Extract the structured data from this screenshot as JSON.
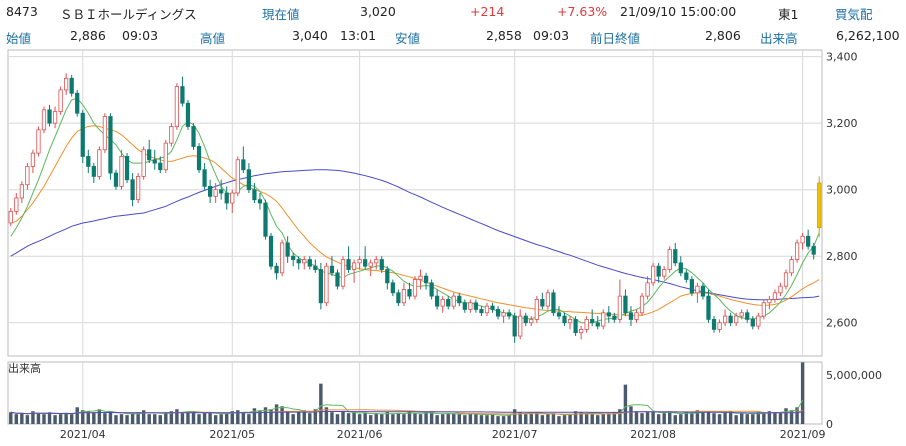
{
  "header": {
    "code": "8473",
    "name": "ＳＢＩホールディングス",
    "price_label": "現在値",
    "price": "3,020",
    "change": "+214",
    "change_pct": "+7.63%",
    "datetime": "21/09/10  15:00:00",
    "market": "東1",
    "signal": "買気配"
  },
  "stats": {
    "open_label": "始値",
    "open": "2,886",
    "open_time": "09:03",
    "high_label": "高値",
    "high": "3,040",
    "high_time": "13:01",
    "low_label": "安値",
    "low": "2,858",
    "low_time": "09:03",
    "prev_label": "前日終値",
    "prev": "2,806",
    "vol_label": "出来高",
    "volume": "6,262,100"
  },
  "volume_panel_label": "出来高",
  "colors": {
    "label": "#1a6fa3",
    "up": "#e03a3a",
    "candle_down": "#0d7a6f",
    "candle_up_body": "#ffffff",
    "candle_up_edge": "#e05050",
    "candle_last": "#f2c200",
    "ma_short": "#5cb85c",
    "ma_mid": "#f0902a",
    "ma_long": "#4a4acc",
    "volume_bar": "#4a5a6c",
    "grid": "#d8d8d8"
  },
  "chart_data": {
    "type": "candlestick",
    "y_ticks": [
      "3,400",
      "3,200",
      "3,000",
      "2,800",
      "2,600"
    ],
    "ylim": [
      2500,
      3420
    ],
    "volume_ticks": [
      "5,000,000",
      "0"
    ],
    "volume_lim": [
      0,
      6300000
    ],
    "x_ticks": [
      "2021/04",
      "2021/05",
      "2021/06",
      "2021/07",
      "2021/08",
      "2021/09"
    ],
    "x_tick_index": [
      13,
      40,
      63,
      91,
      116,
      143
    ],
    "ohlc": [
      [
        2900,
        2945,
        2890,
        2935
      ],
      [
        2935,
        2990,
        2925,
        2975
      ],
      [
        2975,
        3025,
        2960,
        3015
      ],
      [
        3015,
        3080,
        3000,
        3070
      ],
      [
        3070,
        3120,
        3050,
        3110
      ],
      [
        3110,
        3190,
        3100,
        3180
      ],
      [
        3180,
        3250,
        3170,
        3240
      ],
      [
        3240,
        3255,
        3190,
        3200
      ],
      [
        3200,
        3250,
        3185,
        3235
      ],
      [
        3235,
        3310,
        3225,
        3300
      ],
      [
        3300,
        3350,
        3285,
        3335
      ],
      [
        3335,
        3345,
        3280,
        3290
      ],
      [
        3290,
        3300,
        3220,
        3230
      ],
      [
        3230,
        3240,
        3080,
        3100
      ],
      [
        3100,
        3120,
        3050,
        3070
      ],
      [
        3070,
        3080,
        3020,
        3040
      ],
      [
        3040,
        3130,
        3030,
        3120
      ],
      [
        3120,
        3230,
        3110,
        3220
      ],
      [
        3220,
        3230,
        3030,
        3050
      ],
      [
        3050,
        3060,
        3000,
        3010
      ],
      [
        3010,
        3120,
        3000,
        3100
      ],
      [
        3100,
        3110,
        3020,
        3030
      ],
      [
        3030,
        3050,
        2950,
        2970
      ],
      [
        2970,
        3050,
        2960,
        3040
      ],
      [
        3040,
        3130,
        3030,
        3120
      ],
      [
        3120,
        3150,
        3080,
        3090
      ],
      [
        3090,
        3120,
        3060,
        3080
      ],
      [
        3080,
        3100,
        3050,
        3060
      ],
      [
        3060,
        3150,
        3050,
        3140
      ],
      [
        3140,
        3200,
        3130,
        3190
      ],
      [
        3190,
        3320,
        3180,
        3310
      ],
      [
        3310,
        3340,
        3250,
        3260
      ],
      [
        3260,
        3270,
        3180,
        3190
      ],
      [
        3190,
        3200,
        3120,
        3130
      ],
      [
        3130,
        3140,
        3050,
        3060
      ],
      [
        3060,
        3080,
        3000,
        3010
      ],
      [
        3010,
        3030,
        2960,
        2980
      ],
      [
        2980,
        3020,
        2960,
        3000
      ],
      [
        3000,
        3030,
        2970,
        2990
      ],
      [
        2990,
        3010,
        2940,
        2960
      ],
      [
        2960,
        3000,
        2930,
        2990
      ],
      [
        2990,
        3100,
        2980,
        3090
      ],
      [
        3090,
        3130,
        3050,
        3060
      ],
      [
        3060,
        3080,
        2990,
        3000
      ],
      [
        3000,
        3020,
        2960,
        2970
      ],
      [
        2970,
        2990,
        2940,
        2960
      ],
      [
        2960,
        2970,
        2850,
        2860
      ],
      [
        2860,
        2870,
        2760,
        2770
      ],
      [
        2770,
        2780,
        2730,
        2750
      ],
      [
        2750,
        2850,
        2740,
        2840
      ],
      [
        2840,
        2860,
        2780,
        2800
      ],
      [
        2800,
        2810,
        2770,
        2790
      ],
      [
        2790,
        2800,
        2760,
        2780
      ],
      [
        2780,
        2800,
        2760,
        2790
      ],
      [
        2790,
        2800,
        2760,
        2770
      ],
      [
        2770,
        2790,
        2750,
        2760
      ],
      [
        2760,
        2780,
        2640,
        2660
      ],
      [
        2660,
        2780,
        2650,
        2770
      ],
      [
        2770,
        2800,
        2740,
        2750
      ],
      [
        2750,
        2760,
        2700,
        2710
      ],
      [
        2710,
        2800,
        2700,
        2790
      ],
      [
        2790,
        2830,
        2750,
        2760
      ],
      [
        2760,
        2790,
        2720,
        2780
      ],
      [
        2780,
        2800,
        2760,
        2790
      ],
      [
        2790,
        2830,
        2760,
        2770
      ],
      [
        2770,
        2790,
        2740,
        2780
      ],
      [
        2780,
        2800,
        2760,
        2790
      ],
      [
        2790,
        2800,
        2750,
        2760
      ],
      [
        2760,
        2770,
        2700,
        2720
      ],
      [
        2720,
        2730,
        2680,
        2690
      ],
      [
        2690,
        2700,
        2650,
        2660
      ],
      [
        2660,
        2720,
        2650,
        2700
      ],
      [
        2700,
        2720,
        2670,
        2680
      ],
      [
        2680,
        2740,
        2670,
        2730
      ],
      [
        2730,
        2760,
        2700,
        2740
      ],
      [
        2740,
        2750,
        2700,
        2720
      ],
      [
        2720,
        2730,
        2670,
        2680
      ],
      [
        2680,
        2700,
        2640,
        2650
      ],
      [
        2650,
        2680,
        2630,
        2670
      ],
      [
        2670,
        2680,
        2640,
        2650
      ],
      [
        2650,
        2690,
        2640,
        2680
      ],
      [
        2680,
        2690,
        2650,
        2660
      ],
      [
        2660,
        2670,
        2630,
        2640
      ],
      [
        2640,
        2670,
        2630,
        2660
      ],
      [
        2660,
        2670,
        2630,
        2640
      ],
      [
        2640,
        2650,
        2620,
        2630
      ],
      [
        2630,
        2660,
        2620,
        2650
      ],
      [
        2650,
        2660,
        2630,
        2640
      ],
      [
        2640,
        2650,
        2610,
        2620
      ],
      [
        2620,
        2640,
        2600,
        2630
      ],
      [
        2630,
        2640,
        2610,
        2620
      ],
      [
        2620,
        2630,
        2540,
        2560
      ],
      [
        2560,
        2640,
        2550,
        2620
      ],
      [
        2620,
        2630,
        2590,
        2600
      ],
      [
        2600,
        2620,
        2590,
        2610
      ],
      [
        2610,
        2680,
        2600,
        2670
      ],
      [
        2670,
        2690,
        2640,
        2650
      ],
      [
        2650,
        2700,
        2640,
        2690
      ],
      [
        2690,
        2700,
        2620,
        2630
      ],
      [
        2630,
        2650,
        2610,
        2620
      ],
      [
        2620,
        2630,
        2590,
        2600
      ],
      [
        2600,
        2620,
        2580,
        2610
      ],
      [
        2610,
        2620,
        2560,
        2570
      ],
      [
        2570,
        2590,
        2550,
        2580
      ],
      [
        2580,
        2620,
        2570,
        2610
      ],
      [
        2610,
        2640,
        2590,
        2600
      ],
      [
        2600,
        2620,
        2580,
        2590
      ],
      [
        2590,
        2640,
        2580,
        2630
      ],
      [
        2630,
        2650,
        2600,
        2620
      ],
      [
        2620,
        2630,
        2600,
        2610
      ],
      [
        2610,
        2730,
        2600,
        2680
      ],
      [
        2680,
        2700,
        2620,
        2630
      ],
      [
        2630,
        2650,
        2590,
        2610
      ],
      [
        2610,
        2640,
        2600,
        2630
      ],
      [
        2630,
        2690,
        2620,
        2680
      ],
      [
        2680,
        2740,
        2670,
        2720
      ],
      [
        2720,
        2780,
        2710,
        2770
      ],
      [
        2770,
        2780,
        2720,
        2740
      ],
      [
        2740,
        2770,
        2730,
        2760
      ],
      [
        2760,
        2830,
        2750,
        2820
      ],
      [
        2820,
        2840,
        2770,
        2780
      ],
      [
        2780,
        2800,
        2740,
        2750
      ],
      [
        2750,
        2760,
        2720,
        2730
      ],
      [
        2730,
        2740,
        2680,
        2690
      ],
      [
        2690,
        2720,
        2660,
        2710
      ],
      [
        2710,
        2720,
        2670,
        2680
      ],
      [
        2680,
        2700,
        2600,
        2610
      ],
      [
        2610,
        2620,
        2570,
        2580
      ],
      [
        2580,
        2610,
        2570,
        2600
      ],
      [
        2600,
        2640,
        2590,
        2620
      ],
      [
        2620,
        2630,
        2590,
        2600
      ],
      [
        2600,
        2630,
        2590,
        2620
      ],
      [
        2620,
        2640,
        2610,
        2630
      ],
      [
        2630,
        2640,
        2600,
        2610
      ],
      [
        2610,
        2620,
        2580,
        2590
      ],
      [
        2590,
        2630,
        2580,
        2620
      ],
      [
        2620,
        2670,
        2610,
        2660
      ],
      [
        2660,
        2680,
        2640,
        2670
      ],
      [
        2670,
        2700,
        2660,
        2690
      ],
      [
        2690,
        2720,
        2680,
        2710
      ],
      [
        2710,
        2760,
        2700,
        2750
      ],
      [
        2750,
        2800,
        2740,
        2790
      ],
      [
        2790,
        2850,
        2780,
        2840
      ],
      [
        2840,
        2870,
        2820,
        2860
      ],
      [
        2860,
        2880,
        2820,
        2830
      ],
      [
        2830,
        2840,
        2790,
        2806
      ],
      [
        2886,
        3040,
        2858,
        3020
      ]
    ],
    "volume": [
      1200000,
      1000000,
      1100000,
      900000,
      1300000,
      1100000,
      1000000,
      1200000,
      900000,
      1000000,
      1100000,
      1000000,
      1700000,
      1400000,
      1300000,
      1200000,
      1500000,
      1100000,
      1300000,
      900000,
      1000000,
      900000,
      1100000,
      1200000,
      1400000,
      1000000,
      1000000,
      900000,
      1200000,
      1300000,
      1500000,
      1100000,
      1200000,
      1300000,
      1000000,
      1100000,
      1200000,
      900000,
      1000000,
      1100000,
      1300000,
      1400000,
      1200000,
      1000000,
      1600000,
      1400000,
      1700000,
      1500000,
      2000000,
      1800000,
      1300000,
      1000000,
      1200000,
      1400000,
      1100000,
      1500000,
      4100000,
      1700000,
      1200000,
      1000000,
      1300000,
      1100000,
      1200000,
      1000000,
      1100000,
      900000,
      1100000,
      1000000,
      1200000,
      1000000,
      1100000,
      1000000,
      1300000,
      1100000,
      1000000,
      1200000,
      1100000,
      900000,
      1000000,
      1100000,
      1100000,
      1000000,
      900000,
      1100000,
      1000000,
      900000,
      900000,
      1000000,
      800000,
      800000,
      900000,
      1500000,
      1200000,
      1000000,
      1100000,
      1200000,
      900000,
      1000000,
      1100000,
      800000,
      900000,
      1000000,
      1300000,
      1200000,
      1100000,
      1000000,
      900000,
      1000000,
      1100000,
      1200000,
      1500000,
      4000000,
      1800000,
      1300000,
      1100000,
      1200000,
      1300000,
      1000000,
      1100000,
      1300000,
      900000,
      1000000,
      1200000,
      1100000,
      1400000,
      1200000,
      1300000,
      1100000,
      1000000,
      1200000,
      1300000,
      900000,
      1100000,
      1000000,
      1000000,
      1200000,
      1100000,
      1300000,
      1200000,
      1100000,
      1600000,
      1400000,
      1700000,
      6262100
    ],
    "ma_short": [
      2860,
      2885,
      2915,
      2950,
      2990,
      3030,
      3075,
      3120,
      3160,
      3200,
      3240,
      3270,
      3275,
      3255,
      3230,
      3200,
      3180,
      3165,
      3150,
      3135,
      3110,
      3090,
      3080,
      3080,
      3080,
      3085,
      3090,
      3095,
      3100,
      3115,
      3150,
      3190,
      3205,
      3195,
      3170,
      3130,
      3085,
      3045,
      3010,
      2990,
      2985,
      2995,
      3010,
      3015,
      3010,
      2995,
      2965,
      2925,
      2890,
      2870,
      2835,
      2810,
      2795,
      2785,
      2780,
      2770,
      2755,
      2750,
      2745,
      2740,
      2735,
      2745,
      2750,
      2755,
      2760,
      2765,
      2770,
      2772,
      2765,
      2755,
      2740,
      2725,
      2715,
      2710,
      2710,
      2712,
      2710,
      2700,
      2690,
      2680,
      2670,
      2665,
      2660,
      2660,
      2655,
      2650,
      2645,
      2640,
      2635,
      2630,
      2628,
      2620,
      2615,
      2612,
      2612,
      2618,
      2625,
      2635,
      2640,
      2640,
      2630,
      2620,
      2610,
      2600,
      2600,
      2600,
      2605,
      2610,
      2612,
      2614,
      2620,
      2628,
      2635,
      2640,
      2648,
      2662,
      2682,
      2705,
      2725,
      2740,
      2755,
      2765,
      2762,
      2750,
      2735,
      2720,
      2700,
      2685,
      2670,
      2650,
      2635,
      2622,
      2615,
      2612,
      2612,
      2615,
      2620,
      2630,
      2645,
      2662,
      2685,
      2712,
      2745,
      2780,
      2810,
      2830,
      2870
    ],
    "ma_mid": [
      2900,
      2905,
      2920,
      2940,
      2960,
      2985,
      3010,
      3040,
      3070,
      3100,
      3130,
      3155,
      3175,
      3185,
      3190,
      3192,
      3190,
      3185,
      3180,
      3175,
      3165,
      3150,
      3135,
      3120,
      3110,
      3100,
      3095,
      3090,
      3085,
      3085,
      3090,
      3095,
      3100,
      3102,
      3100,
      3095,
      3090,
      3080,
      3065,
      3050,
      3035,
      3025,
      3015,
      3008,
      3000,
      2995,
      2988,
      2978,
      2965,
      2945,
      2922,
      2900,
      2878,
      2860,
      2840,
      2825,
      2810,
      2798,
      2790,
      2782,
      2775,
      2770,
      2766,
      2762,
      2760,
      2758,
      2757,
      2755,
      2753,
      2750,
      2747,
      2742,
      2738,
      2733,
      2728,
      2722,
      2716,
      2710,
      2704,
      2698,
      2692,
      2688,
      2684,
      2680,
      2676,
      2672,
      2668,
      2664,
      2660,
      2657,
      2654,
      2651,
      2648,
      2645,
      2643,
      2640,
      2638,
      2637,
      2636,
      2635,
      2634,
      2633,
      2632,
      2631,
      2630,
      2629,
      2628,
      2627,
      2626,
      2625,
      2624,
      2623,
      2622,
      2622,
      2623,
      2627,
      2633,
      2640,
      2650,
      2660,
      2670,
      2680,
      2685,
      2688,
      2690,
      2690,
      2688,
      2684,
      2680,
      2675,
      2670,
      2666,
      2662,
      2658,
      2655,
      2653,
      2652,
      2653,
      2655,
      2660,
      2668,
      2678,
      2690,
      2702,
      2712,
      2720,
      2730
    ],
    "ma_long": [
      2800,
      2810,
      2820,
      2830,
      2838,
      2845,
      2852,
      2860,
      2868,
      2875,
      2882,
      2890,
      2895,
      2900,
      2903,
      2906,
      2910,
      2913,
      2917,
      2920,
      2922,
      2924,
      2926,
      2928,
      2930,
      2935,
      2940,
      2945,
      2950,
      2958,
      2965,
      2972,
      2978,
      2985,
      2992,
      2998,
      3004,
      3010,
      3016,
      3021,
      3026,
      3030,
      3034,
      3038,
      3042,
      3045,
      3048,
      3050,
      3052,
      3054,
      3055,
      3056,
      3057,
      3058,
      3059,
      3060,
      3060,
      3060,
      3059,
      3058,
      3056,
      3053,
      3050,
      3046,
      3042,
      3038,
      3033,
      3028,
      3022,
      3015,
      3008,
      3000,
      2992,
      2985,
      2978,
      2970,
      2962,
      2955,
      2947,
      2940,
      2933,
      2926,
      2919,
      2912,
      2905,
      2898,
      2891,
      2884,
      2877,
      2871,
      2865,
      2859,
      2853,
      2847,
      2841,
      2835,
      2830,
      2825,
      2819,
      2814,
      2808,
      2803,
      2797,
      2791,
      2785,
      2779,
      2773,
      2768,
      2763,
      2758,
      2753,
      2748,
      2744,
      2740,
      2736,
      2733,
      2730,
      2726,
      2722,
      2718,
      2713,
      2708,
      2704,
      2700,
      2696,
      2693,
      2690,
      2687,
      2684,
      2681,
      2678,
      2675,
      2673,
      2671,
      2670,
      2669,
      2669,
      2669,
      2670,
      2671,
      2672,
      2673,
      2674,
      2675,
      2676,
      2677,
      2680
    ]
  }
}
